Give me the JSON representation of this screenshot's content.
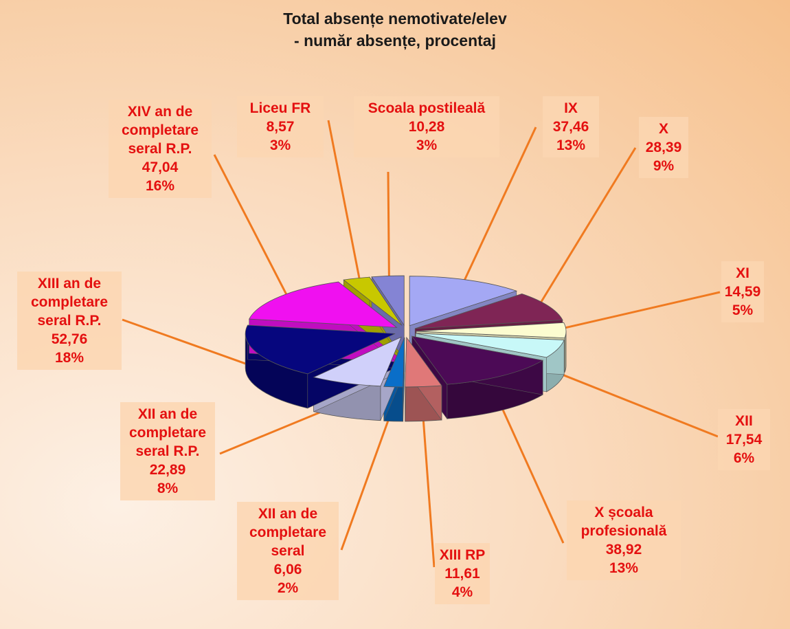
{
  "chart_data": {
    "type": "pie3d",
    "title": "Total absențe nemotivate/elev",
    "subtitle": "- număr absențe, procentaj",
    "categories": [
      "IX",
      "X",
      "XI",
      "XII",
      "X școala profesională",
      "XIII RP",
      "XII an  de completare seral",
      "XII an  de completare seral R.P.",
      "XIII an  de completare seral R.P.",
      "XIV an  de completare seral R.P.",
      "Liceu FR",
      "Scoala postileală"
    ],
    "values": [
      37.46,
      28.39,
      14.59,
      17.54,
      38.92,
      11.61,
      6.06,
      22.89,
      52.76,
      47.04,
      8.57,
      10.28
    ],
    "value_labels": [
      "37,46",
      "28,39",
      "14,59",
      "17,54",
      "38,92",
      "11,61",
      "6,06",
      "22,89",
      "52,76",
      "47,04",
      "8,57",
      "10,28"
    ],
    "percent_labels": [
      "13%",
      "9%",
      "5%",
      "6%",
      "13%",
      "4%",
      "2%",
      "8%",
      "18%",
      "16%",
      "3%",
      "3%"
    ],
    "colors": [
      "#a4a8f4",
      "#7f2555",
      "#fcfcd0",
      "#c8f8f8",
      "#4c0a56",
      "#e07878",
      "#0a6ec8",
      "#d0d0fa",
      "#06067e",
      "#f010f0",
      "#c8c800",
      "#8484d4"
    ]
  }
}
